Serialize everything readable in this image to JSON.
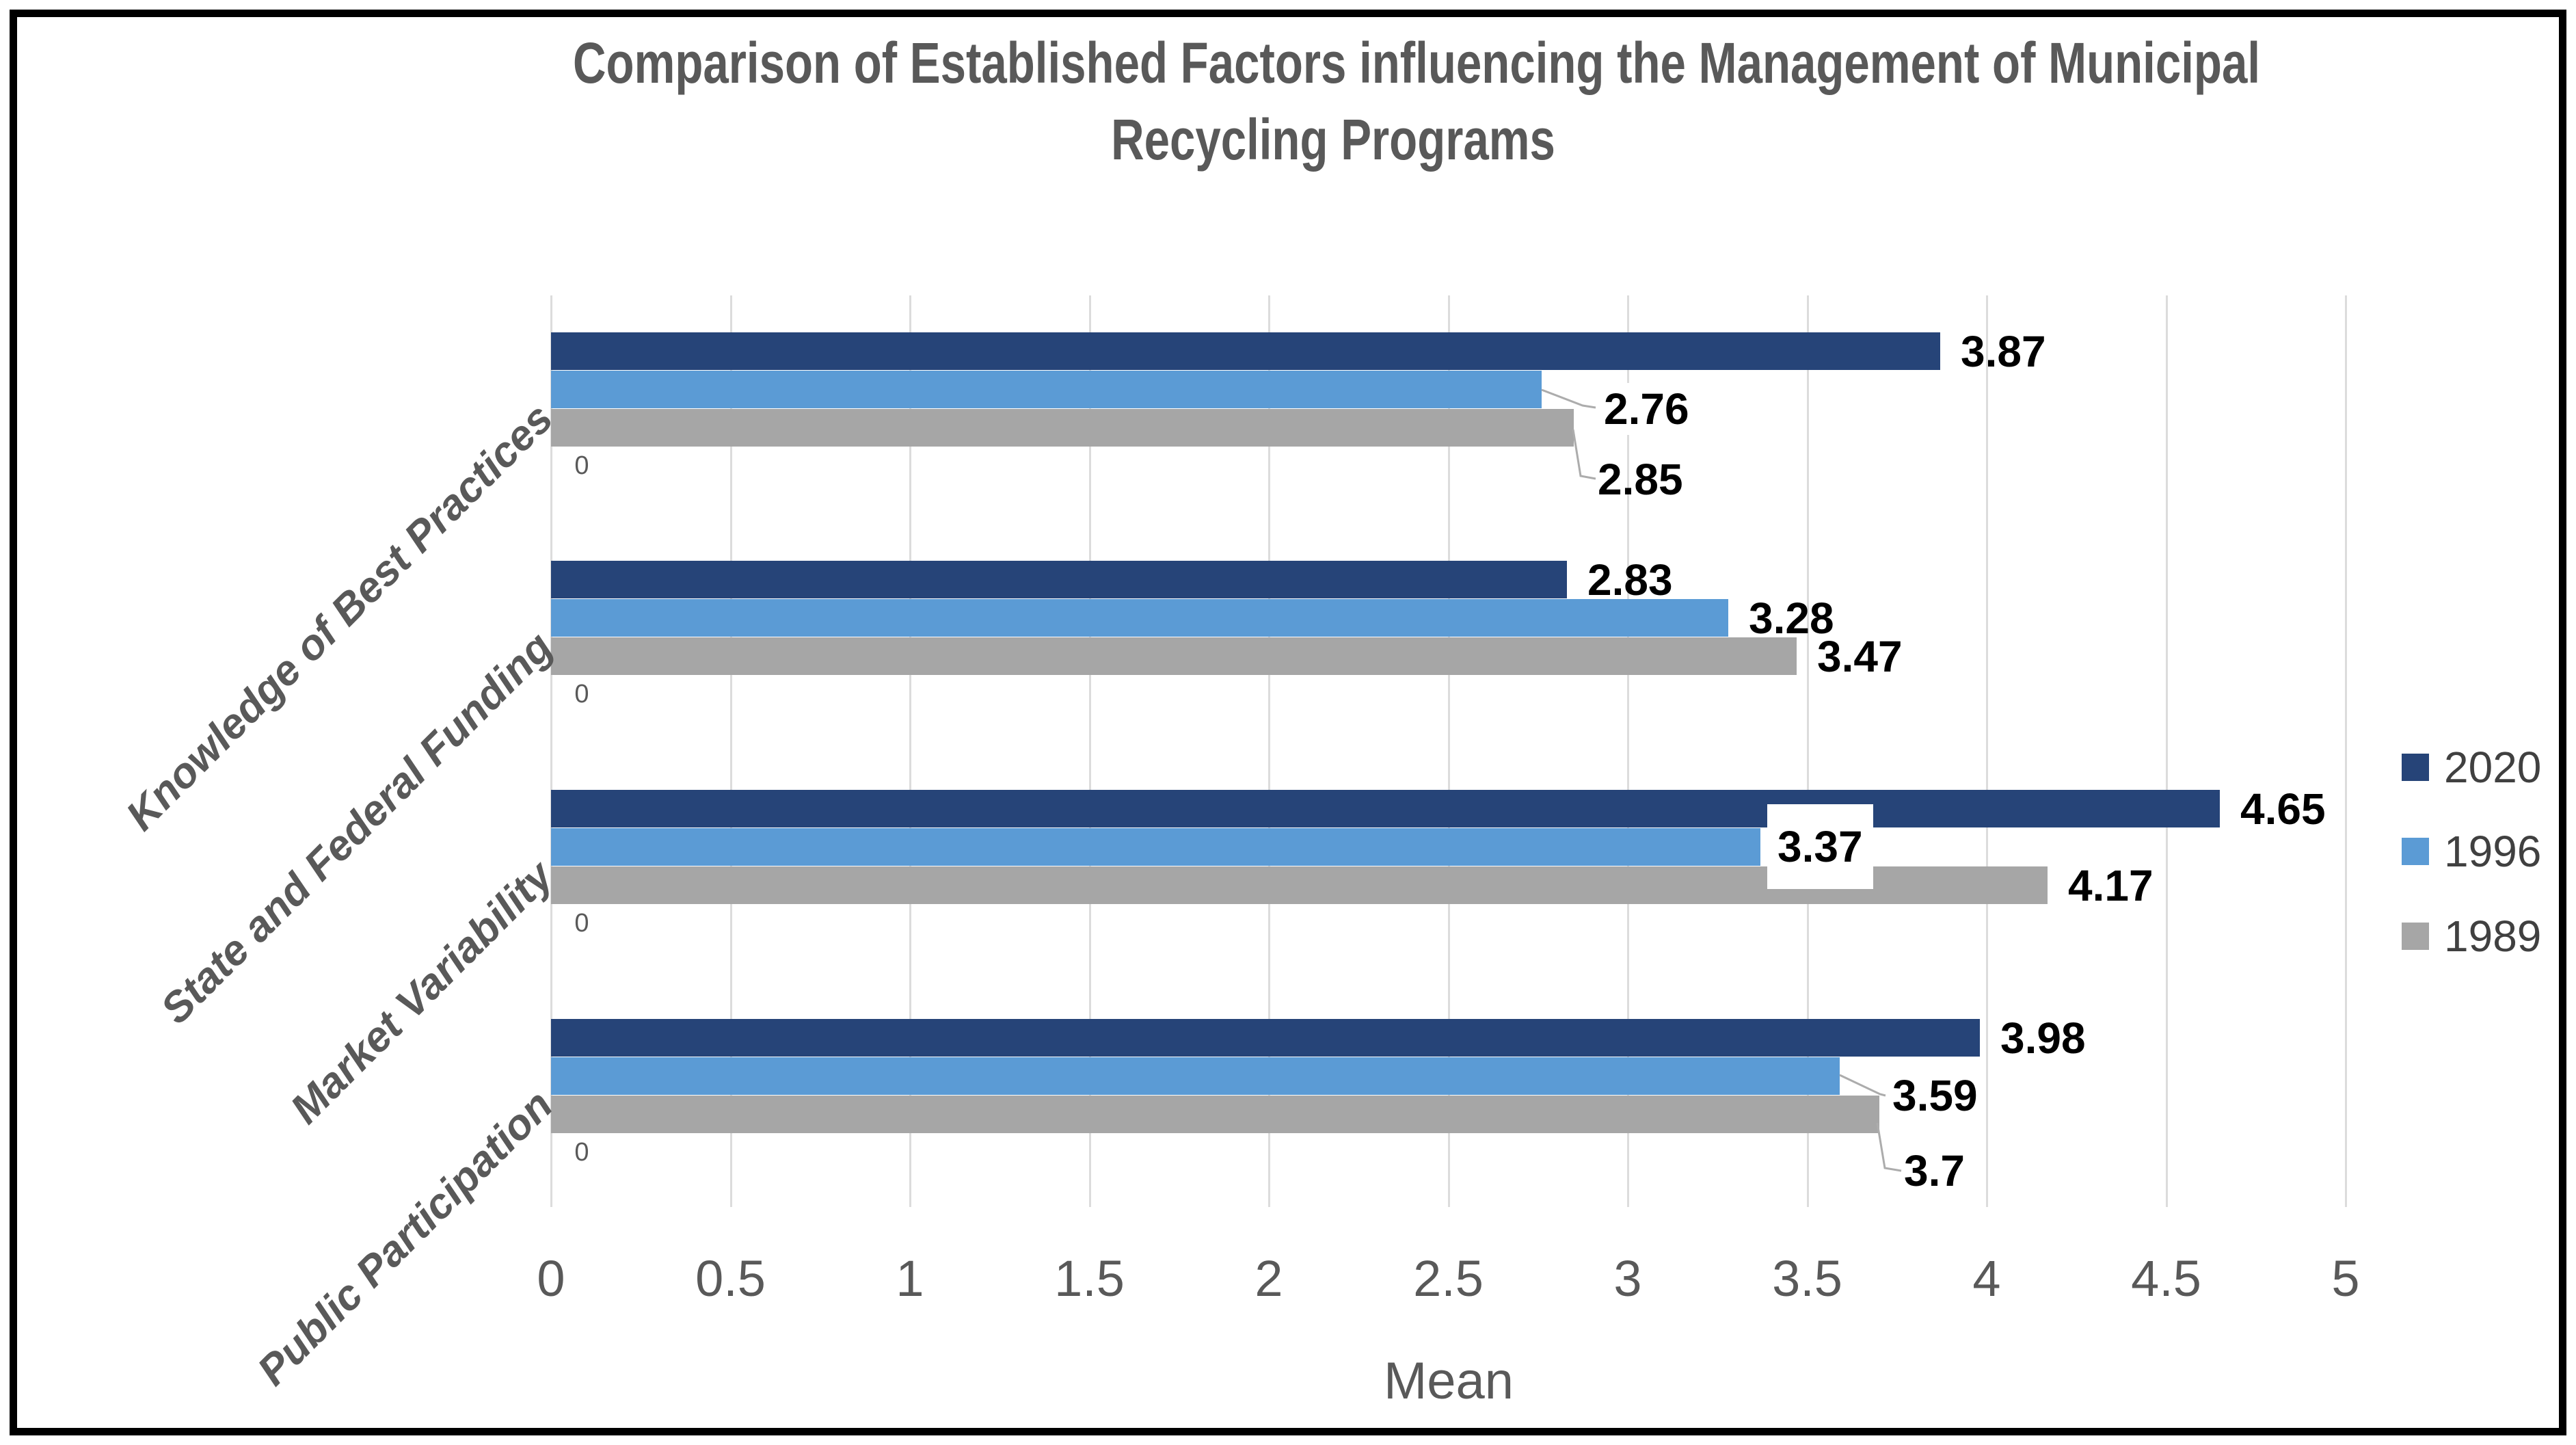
{
  "title": {
    "text": "Comparison of Established Factors influencing the Management of Municipal Recycling Programs",
    "lines": [
      "Comparison of Established Factors influencing the Management of Municipal",
      "Recycling Programs"
    ]
  },
  "colors": {
    "series_2020": "#264478",
    "series_1996": "#5B9BD5",
    "series_1989": "#A6A6A6",
    "title_text": "#595959",
    "axis_text": "#595959",
    "legend_text": "#404040",
    "data_label_text": "#000000",
    "gridline": "#DCDCDC",
    "leader_line": "#ACACAC",
    "frame_border": "#000000"
  },
  "chart_data": {
    "type": "bar",
    "orientation": "horizontal",
    "title": "Comparison of Established Factors influencing the Management of Municipal Recycling Programs",
    "categories": [
      "Knowledge of Best Practices",
      "State and Federal Funding",
      "Market Variability",
      "Public Participation"
    ],
    "series": [
      {
        "name": "2020",
        "color": "#264478",
        "values": [
          3.87,
          2.83,
          4.65,
          3.98
        ],
        "labels": [
          "3.87",
          "2.83",
          "4.65",
          "3.98"
        ]
      },
      {
        "name": "1996",
        "color": "#5B9BD5",
        "values": [
          2.76,
          3.28,
          3.37,
          3.59
        ],
        "labels": [
          "2.76",
          "3.28",
          "3.37",
          "3.59"
        ]
      },
      {
        "name": "1989",
        "color": "#A6A6A6",
        "values": [
          2.85,
          3.47,
          4.17,
          3.7
        ],
        "labels": [
          "2.85",
          "3.47",
          "4.17",
          "3.7"
        ]
      }
    ],
    "xlabel": "Mean",
    "xlim": [
      0,
      5
    ],
    "xticks": [
      0,
      0.5,
      1,
      1.5,
      2,
      2.5,
      3,
      3.5,
      4,
      4.5,
      5
    ],
    "xtick_labels": [
      "0",
      "0.5",
      "1",
      "1.5",
      "2",
      "2.5",
      "3",
      "3.5",
      "4",
      "4.5",
      "5"
    ],
    "zero_labels": [
      "0",
      "0",
      "0",
      "0"
    ],
    "grid": true,
    "legend_position": "right",
    "legend_entries": [
      "2020",
      "1996",
      "1989"
    ]
  }
}
